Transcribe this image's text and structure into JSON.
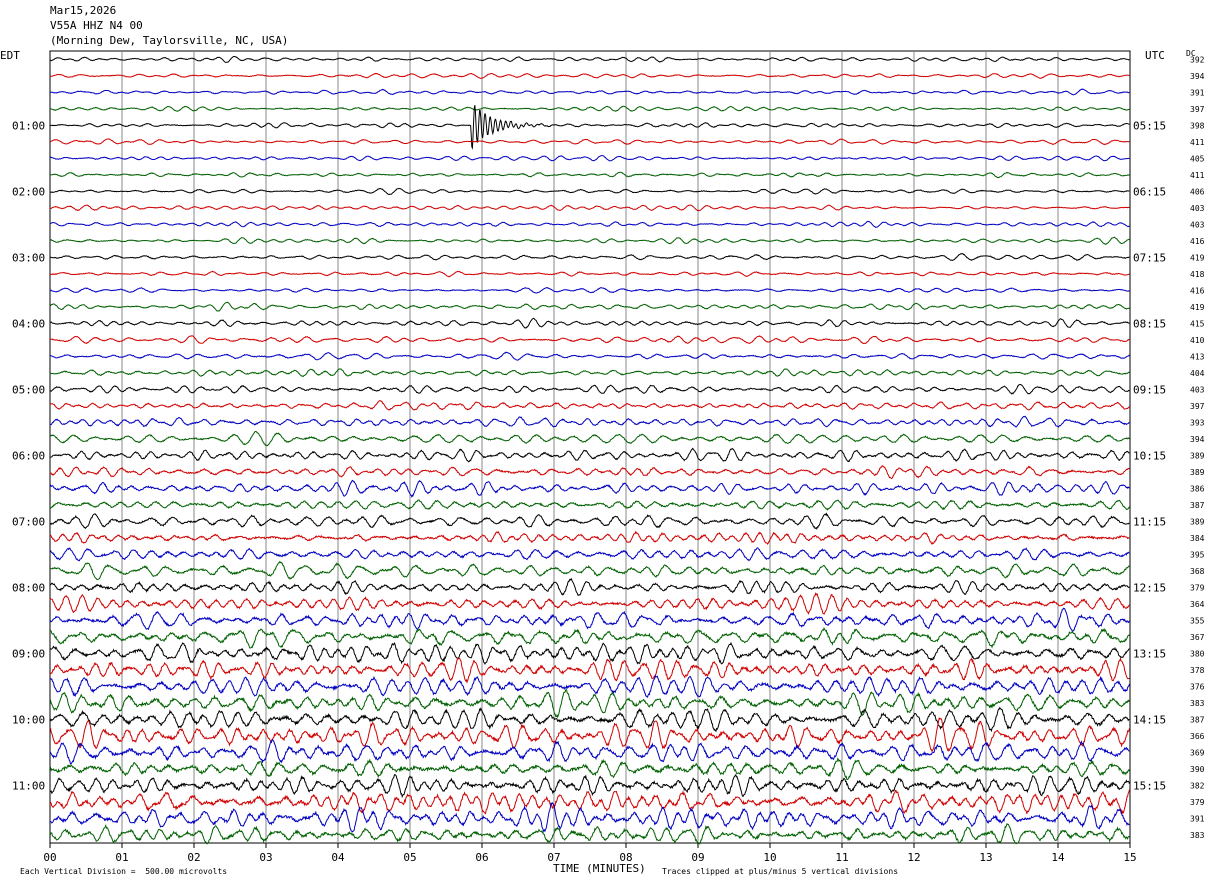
{
  "header": {
    "date": "Mar15,2026",
    "channel": "V55A HHZ N4 00",
    "location": "(Morning Dew, Taylorsville, NC, USA)"
  },
  "labels": {
    "left_tz": "EDT",
    "right_tz": "UTC",
    "dc_header": "DC",
    "xlabel": "TIME (MINUTES)",
    "scale_note": "Each Vertical Division =  500.00 microvolts",
    "clip_note": "Traces clipped at plus/minus 5 vertical divisions"
  },
  "chart_data": {
    "type": "line",
    "subtype": "helicorder",
    "x_range": [
      0,
      15
    ],
    "x_ticks": [
      "00",
      "01",
      "02",
      "03",
      "04",
      "05",
      "06",
      "07",
      "08",
      "09",
      "10",
      "11",
      "12",
      "13",
      "14",
      "15"
    ],
    "left_hour_labels": [
      "01:00",
      "02:00",
      "03:00",
      "04:00",
      "05:00",
      "06:00",
      "07:00",
      "08:00",
      "09:00",
      "10:00",
      "11:00"
    ],
    "right_hour_labels": [
      "05:15",
      "06:15",
      "07:15",
      "08:15",
      "09:15",
      "10:15",
      "11:15",
      "12:15",
      "13:15",
      "14:15",
      "15:15"
    ],
    "trace_colors": [
      "#000000",
      "#d00000",
      "#0000c0",
      "#006000"
    ],
    "rows": 48,
    "dc_offsets": [
      392,
      394,
      391,
      397,
      398,
      411,
      405,
      411,
      406,
      403,
      403,
      416,
      419,
      418,
      416,
      419,
      415,
      410,
      413,
      404,
      403,
      397,
      393,
      394,
      389,
      389,
      386,
      387,
      389,
      384,
      395,
      368,
      379,
      364,
      355,
      367,
      380,
      378,
      376,
      383,
      387,
      366,
      369,
      390,
      382,
      379,
      391,
      383
    ],
    "amplitude_profile": [
      0.13,
      0.13,
      0.13,
      0.14,
      0.14,
      0.13,
      0.13,
      0.14,
      0.14,
      0.13,
      0.13,
      0.14,
      0.16,
      0.15,
      0.15,
      0.16,
      0.18,
      0.18,
      0.18,
      0.2,
      0.22,
      0.23,
      0.25,
      0.27,
      0.3,
      0.31,
      0.32,
      0.34,
      0.35,
      0.37,
      0.38,
      0.4,
      0.42,
      0.44,
      0.5,
      0.54,
      0.55,
      0.58,
      0.6,
      0.6,
      0.62,
      0.6,
      0.6,
      0.62,
      0.63,
      0.63,
      0.6,
      0.55
    ],
    "events": [
      {
        "row": 4,
        "minute_start": 5.85,
        "minute_end": 7.0,
        "peak_divisions": 1.5
      }
    ],
    "vertical_division_microvolts": 500.0,
    "clip_divisions": 5
  }
}
